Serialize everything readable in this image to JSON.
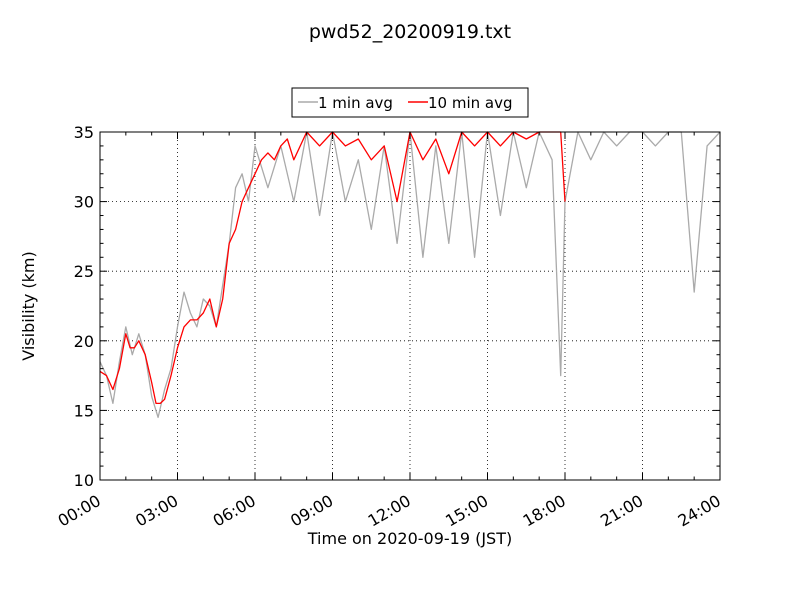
{
  "chart_data": {
    "type": "line",
    "title": "pwd52_20200919.txt",
    "xlabel": "Time on 2020-09-19 (JST)",
    "ylabel": "Visibility (km)",
    "xlim": [
      "00:00",
      "24:00"
    ],
    "ylim": [
      10,
      35
    ],
    "x_ticks": [
      "00:00",
      "03:00",
      "06:00",
      "09:00",
      "12:00",
      "15:00",
      "18:00",
      "21:00",
      "24:00"
    ],
    "y_ticks": [
      "10",
      "15",
      "20",
      "25",
      "30",
      "35"
    ],
    "grid": true,
    "legend": {
      "placement": "top-center",
      "entries": [
        "1 min avg",
        "10 min avg"
      ]
    },
    "colors": {
      "one_min": "#aaaaaa",
      "ten_min": "#ff0000"
    },
    "series": [
      {
        "name": "1 min avg",
        "x": [
          "00:00",
          "00:15",
          "00:30",
          "00:45",
          "01:00",
          "01:15",
          "01:30",
          "01:45",
          "02:00",
          "02:15",
          "02:30",
          "02:45",
          "03:00",
          "03:15",
          "03:30",
          "03:45",
          "04:00",
          "04:15",
          "04:30",
          "04:45",
          "05:00",
          "05:15",
          "05:30",
          "05:45",
          "06:00",
          "06:30",
          "07:00",
          "07:30",
          "08:00",
          "08:30",
          "09:00",
          "09:30",
          "10:00",
          "10:30",
          "11:00",
          "11:30",
          "12:00",
          "12:30",
          "13:00",
          "13:30",
          "14:00",
          "14:30",
          "15:00",
          "15:30",
          "16:00",
          "16:30",
          "17:00",
          "17:30",
          "17:50",
          "18:00",
          "18:30",
          "19:00",
          "19:30",
          "20:00",
          "20:30",
          "21:00",
          "21:30",
          "22:00",
          "22:30",
          "23:00",
          "23:30",
          "24:00"
        ],
        "values": [
          18.5,
          17.5,
          15.5,
          18.5,
          21,
          19,
          20.5,
          19,
          16,
          14.5,
          16.5,
          18,
          21,
          23.5,
          22,
          21,
          23,
          22.5,
          21,
          24,
          27,
          31,
          32,
          30,
          34,
          31,
          34,
          30,
          35,
          29,
          35,
          30,
          33,
          28,
          34,
          27,
          35,
          26,
          34,
          27,
          35,
          26,
          35,
          29,
          35,
          31,
          35,
          33,
          17.5,
          30,
          35,
          33,
          35,
          34,
          35,
          35,
          34,
          35,
          35,
          23.5,
          34,
          35
        ]
      },
      {
        "name": "10 min avg",
        "x": [
          "00:00",
          "00:15",
          "00:30",
          "00:45",
          "01:00",
          "01:10",
          "01:20",
          "01:30",
          "01:45",
          "02:00",
          "02:10",
          "02:20",
          "02:30",
          "02:45",
          "03:00",
          "03:15",
          "03:30",
          "03:45",
          "04:00",
          "04:15",
          "04:30",
          "04:45",
          "05:00",
          "05:15",
          "05:30",
          "05:45",
          "06:00",
          "06:15",
          "06:30",
          "06:45",
          "07:00",
          "07:15",
          "07:30",
          "08:00",
          "08:30",
          "09:00",
          "09:30",
          "10:00",
          "10:30",
          "11:00",
          "11:30",
          "12:00",
          "12:30",
          "13:00",
          "13:30",
          "14:00",
          "14:30",
          "15:00",
          "15:30",
          "16:00",
          "16:30",
          "17:00",
          "17:30",
          "17:50",
          "18:00"
        ],
        "values": [
          17.8,
          17.5,
          16.5,
          18,
          20.5,
          19.5,
          19.5,
          20,
          19,
          17,
          15.5,
          15.5,
          15.8,
          17.5,
          19.5,
          21,
          21.5,
          21.5,
          22,
          23,
          21,
          23,
          27,
          28,
          30,
          31,
          32,
          33,
          33.5,
          33,
          34,
          34.5,
          33,
          35,
          34,
          35,
          34,
          34.5,
          33,
          34,
          30,
          35,
          33,
          34.5,
          32,
          35,
          34,
          35,
          34,
          35,
          34.5,
          35,
          35,
          35,
          30
        ]
      }
    ]
  }
}
